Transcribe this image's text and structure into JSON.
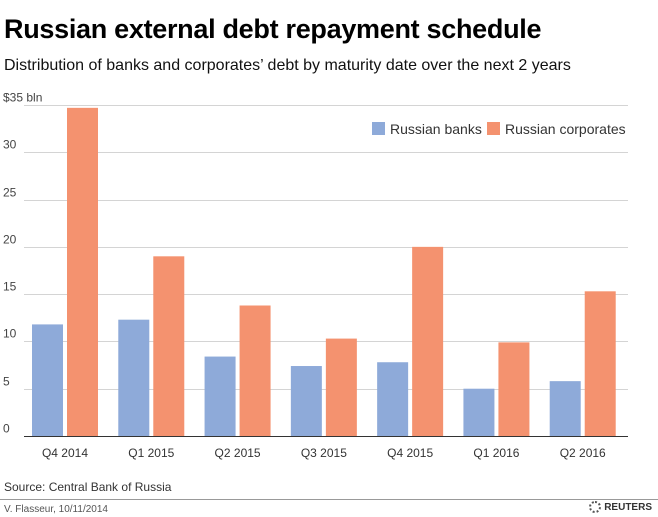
{
  "chart_data": {
    "type": "bar",
    "title": "Russian external debt repayment schedule",
    "subtitle": "Distribution of banks and corporates’ debt by maturity date over the next 2 years",
    "categories": [
      "Q4 2014",
      "Q1 2015",
      "Q2 2015",
      "Q3 2015",
      "Q4 2015",
      "Q1 2016",
      "Q2 2016"
    ],
    "series": [
      {
        "name": "Russian banks",
        "color": "#8eaad9",
        "values": [
          11.8,
          12.3,
          8.4,
          7.4,
          7.8,
          5.0,
          5.8
        ]
      },
      {
        "name": "Russian corporates",
        "color": "#f4926f",
        "values": [
          34.7,
          19.0,
          13.8,
          10.3,
          20.0,
          9.9,
          15.3
        ]
      }
    ],
    "yticks": [
      {
        "value": 0,
        "label": "0"
      },
      {
        "value": 5,
        "label": "5"
      },
      {
        "value": 10,
        "label": "10"
      },
      {
        "value": 15,
        "label": "15"
      },
      {
        "value": 20,
        "label": "20"
      },
      {
        "value": 25,
        "label": "25"
      },
      {
        "value": 30,
        "label": "30"
      },
      {
        "value": 35,
        "label": "$35 bln"
      }
    ],
    "ylim": [
      0,
      35
    ],
    "xlabel": "",
    "ylabel": "",
    "grid": true,
    "legend": "top-right",
    "source": "Source: Central Bank of Russia",
    "credit": "V. Flasseur, 10/11/2014",
    "brand": "REUTERS"
  }
}
